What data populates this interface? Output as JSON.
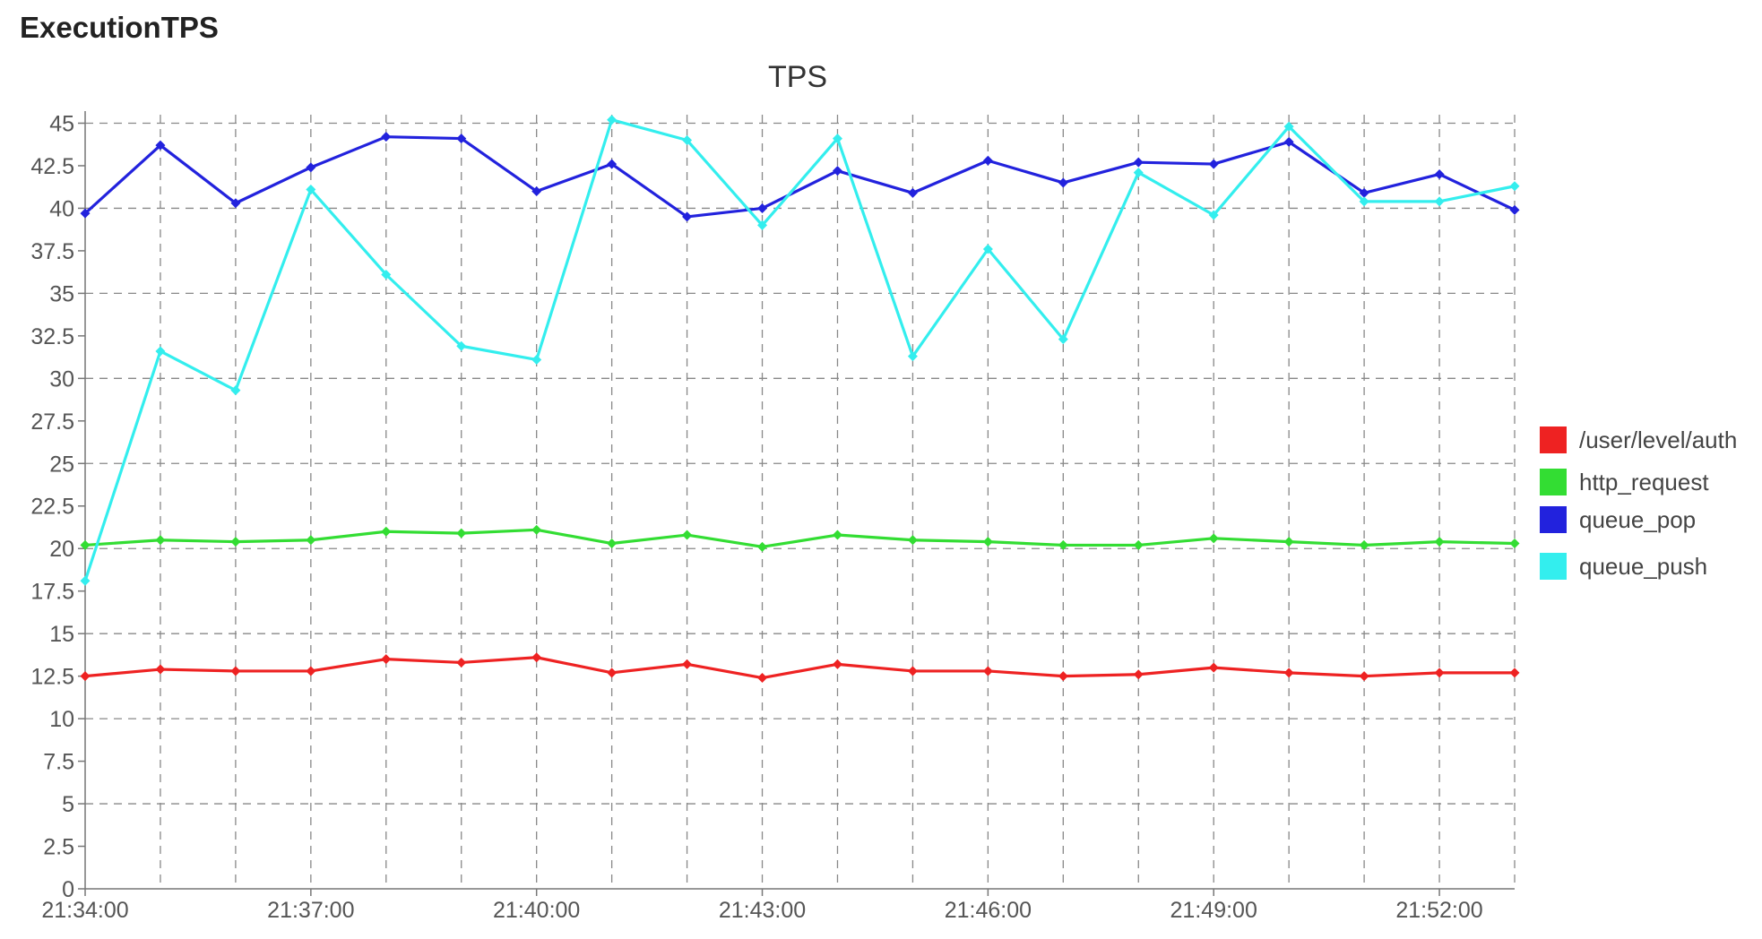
{
  "page": {
    "title": "ExecutionTPS"
  },
  "chart_data": {
    "type": "line",
    "title": "TPS",
    "xlabel": "",
    "ylabel": "",
    "x": [
      "21:34:00",
      "21:35:00",
      "21:36:00",
      "21:37:00",
      "21:38:00",
      "21:39:00",
      "21:40:00",
      "21:41:00",
      "21:42:00",
      "21:43:00",
      "21:44:00",
      "21:45:00",
      "21:46:00",
      "21:47:00",
      "21:48:00",
      "21:49:00",
      "21:50:00",
      "21:51:00",
      "21:52:00",
      "21:53:00"
    ],
    "x_tick_labels": [
      "21:34:00",
      "21:37:00",
      "21:40:00",
      "21:43:00",
      "21:46:00",
      "21:49:00",
      "21:52:00"
    ],
    "y_ticks": [
      "0",
      "2.5",
      "5",
      "7.5",
      "10",
      "12.5",
      "15",
      "17.5",
      "20",
      "22.5",
      "25",
      "27.5",
      "30",
      "32.5",
      "35",
      "37.5",
      "40",
      "42.5",
      "45"
    ],
    "ylim": [
      0,
      45.5
    ],
    "grid": true,
    "legend_position": "right",
    "series": [
      {
        "name": "/user/level/auth",
        "color": "#ee2222",
        "values": [
          12.5,
          12.9,
          12.8,
          12.8,
          13.5,
          13.3,
          13.6,
          12.7,
          13.2,
          12.4,
          13.2,
          12.8,
          12.8,
          12.5,
          12.6,
          13.0,
          12.7,
          12.5,
          12.7,
          12.7
        ]
      },
      {
        "name": "http_request",
        "color": "#33dd33",
        "values": [
          20.2,
          20.5,
          20.4,
          20.5,
          21.0,
          20.9,
          21.1,
          20.3,
          20.8,
          20.1,
          20.8,
          20.5,
          20.4,
          20.2,
          20.2,
          20.6,
          20.4,
          20.2,
          20.4,
          20.3
        ]
      },
      {
        "name": "queue_pop",
        "color": "#2222dd",
        "values": [
          39.7,
          43.7,
          40.3,
          42.4,
          44.2,
          44.1,
          41.0,
          42.6,
          39.5,
          40.0,
          42.2,
          40.9,
          42.8,
          41.5,
          42.7,
          42.6,
          43.9,
          40.9,
          42.0,
          39.9
        ]
      },
      {
        "name": "queue_push",
        "color": "#33eeee",
        "values": [
          18.1,
          31.6,
          29.3,
          41.1,
          36.1,
          31.9,
          31.1,
          45.2,
          44.0,
          39.0,
          44.1,
          31.3,
          37.6,
          32.3,
          42.1,
          39.6,
          44.8,
          40.4,
          40.4,
          41.3
        ]
      }
    ]
  }
}
